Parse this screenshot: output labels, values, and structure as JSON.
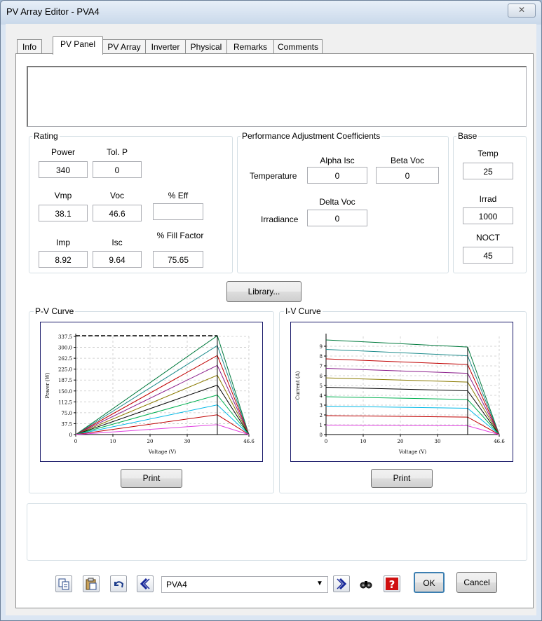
{
  "window": {
    "title": "PV Array Editor - PVA4",
    "close_glyph": "✕"
  },
  "tabs": [
    "Info",
    "PV Panel",
    "PV Array",
    "Inverter",
    "Physical",
    "Remarks",
    "Comments"
  ],
  "rating": {
    "title": "Rating",
    "power_label": "Power",
    "power": "340",
    "tolp_label": "Tol. P",
    "tolp": "0",
    "vmp_label": "Vmp",
    "vmp": "38.1",
    "voc_label": "Voc",
    "voc": "46.6",
    "eff_label": "% Eff",
    "eff": "",
    "imp_label": "Imp",
    "imp": "8.92",
    "isc_label": "Isc",
    "isc": "9.64",
    "ff_label": "% Fill Factor",
    "ff": "75.65"
  },
  "pac": {
    "title": "Performance Adjustment Coefficients",
    "alpha_label": "Alpha Isc",
    "beta_label": "Beta Voc",
    "temperature_label": "Temperature",
    "alpha": "0",
    "beta": "0",
    "delta_label": "Delta Voc",
    "irradiance_label": "Irradiance",
    "delta": "0"
  },
  "base": {
    "title": "Base",
    "temp_label": "Temp",
    "temp": "25",
    "irrad_label": "Irrad",
    "irrad": "1000",
    "noct_label": "NOCT",
    "noct": "45"
  },
  "library_button": "Library...",
  "pv_curve": {
    "title": "P-V Curve",
    "ylabel": "Power (W)",
    "xlabel": "Voltage (V)",
    "yticks": [
      "0",
      "37.5",
      "75.0",
      "112.5",
      "150.0",
      "187.5",
      "225.0",
      "262.5",
      "300.0",
      "337.5"
    ],
    "xticks": [
      "0",
      "10",
      "20",
      "30",
      "46.6"
    ],
    "print": "Print"
  },
  "iv_curve": {
    "title": "I-V Curve",
    "ylabel": "Current (A)",
    "xlabel": "Voltage (V)",
    "yticks": [
      "0",
      "1",
      "2",
      "3",
      "4",
      "5",
      "6",
      "7",
      "8",
      "9"
    ],
    "xticks": [
      "0",
      "10",
      "20",
      "30",
      "46.6"
    ],
    "print": "Print"
  },
  "chart_data": [
    {
      "type": "line",
      "title": "P-V Curve",
      "xlabel": "Voltage (V)",
      "ylabel": "Power (W)",
      "xlim": [
        0,
        46.6
      ],
      "ylim": [
        0,
        337.5
      ],
      "vmp": 38.1,
      "voc": 46.6,
      "series_peak_power": [
        340,
        306,
        272,
        238,
        204,
        170,
        136,
        102,
        68,
        34
      ],
      "series_colors": [
        "#007a3d",
        "#1e8c8c",
        "#c00000",
        "#8a1c8a",
        "#8a7a00",
        "#000000",
        "#00b050",
        "#00b8e6",
        "#c00000",
        "#e040e0"
      ],
      "grid": true
    },
    {
      "type": "line",
      "title": "I-V Curve",
      "xlabel": "Voltage (V)",
      "ylabel": "Current (A)",
      "xlim": [
        0,
        46.6
      ],
      "ylim": [
        0,
        10
      ],
      "vmp": 38.1,
      "voc": 46.6,
      "series_isc": [
        9.64,
        8.68,
        7.71,
        6.75,
        5.78,
        4.82,
        3.86,
        2.89,
        1.93,
        0.96
      ],
      "series_imp": [
        8.92,
        8.03,
        7.14,
        6.24,
        5.35,
        4.46,
        3.57,
        2.68,
        1.78,
        0.89
      ],
      "series_colors": [
        "#007a3d",
        "#1e8c8c",
        "#c00000",
        "#8a1c8a",
        "#8a7a00",
        "#000000",
        "#00b050",
        "#00b8e6",
        "#c00000",
        "#e040e0"
      ],
      "grid": true
    }
  ],
  "toolbar": {
    "selected_array": "PVA4",
    "ok": "OK",
    "cancel": "Cancel",
    "icons": [
      "copy-icon",
      "paste-icon",
      "undo-icon",
      "previous-icon",
      "next-icon",
      "find-icon",
      "help-icon"
    ]
  }
}
